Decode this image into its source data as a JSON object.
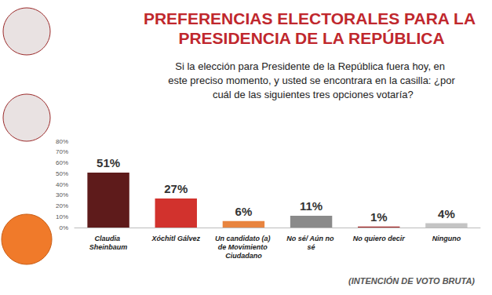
{
  "chart_data": {
    "type": "bar",
    "title": "PREFERENCIAS ELECTORALES PARA LA PRESIDENCIA DE LA REPÚBLICA",
    "subtitle": "Si la elección para Presidente de la República fuera hoy, en este preciso momento, y usted se encontrara en la casilla: ¿por cuál de las siguientes tres opciones votaría?",
    "categories": [
      "Claudia Sheinbaum",
      "Xóchitl Gálvez",
      "Un candidato (a) de Movimiento Ciudadano",
      "No sé/ Aún no sé",
      "No quiero decir",
      "Ninguno"
    ],
    "values": [
      51,
      27,
      6,
      11,
      1,
      4
    ],
    "value_labels": [
      "51%",
      "27%",
      "6%",
      "11%",
      "1%",
      "4%"
    ],
    "colors": [
      "#5e1b1b",
      "#d2322d",
      "#e8843f",
      "#8a8a8a",
      "#a52a2a",
      "#c4c4c4"
    ],
    "ylim": [
      0,
      80
    ],
    "yticks": [
      {
        "value": 0,
        "label": "0%"
      },
      {
        "value": 10,
        "label": "10%"
      },
      {
        "value": 20,
        "label": "20%"
      },
      {
        "value": 30,
        "label": "30%"
      },
      {
        "value": 40,
        "label": "40%"
      },
      {
        "value": 50,
        "label": "50%"
      },
      {
        "value": 60,
        "label": "60%"
      },
      {
        "value": 70,
        "label": "70%"
      },
      {
        "value": 80,
        "label": "80%"
      }
    ],
    "grid": false,
    "data_labels": true,
    "annotations": [
      "(INTENCIÓN DE VOTO BRUTA)"
    ]
  }
}
